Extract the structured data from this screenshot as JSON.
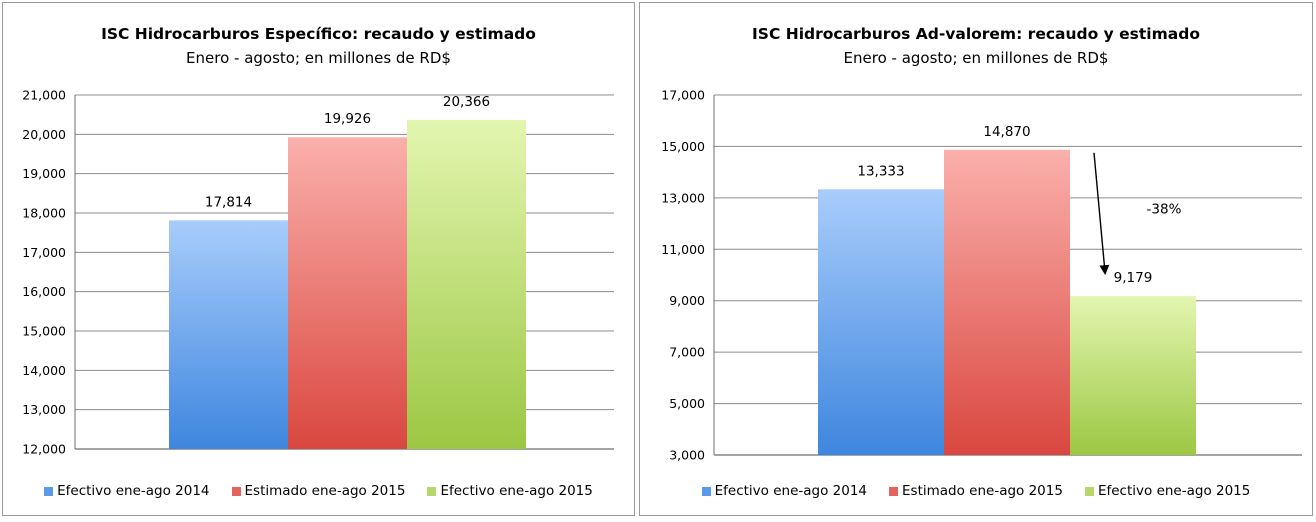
{
  "colors": {
    "series_1": "#5b9ae8",
    "series_2": "#e5635f",
    "series_3": "#b5d86a"
  },
  "chart_data": [
    {
      "type": "bar",
      "title": "ISC Hidrocarburos Específico: recaudo y estimado",
      "subtitle": "Enero - agosto; en millones de RD$",
      "categories": [
        ""
      ],
      "series": [
        {
          "name": "Efectivo ene-ago 2014",
          "values": [
            17814
          ],
          "label": "17,814"
        },
        {
          "name": "Estimado ene-ago 2015",
          "values": [
            19926
          ],
          "label": "19,926"
        },
        {
          "name": "Efectivo ene-ago 2015",
          "values": [
            20366
          ],
          "label": "20,366"
        }
      ],
      "ylim": [
        12000,
        21000
      ],
      "yticks": [
        {
          "value": 12000,
          "label": "12,000"
        },
        {
          "value": 13000,
          "label": "13,000"
        },
        {
          "value": 14000,
          "label": "14,000"
        },
        {
          "value": 15000,
          "label": "15,000"
        },
        {
          "value": 16000,
          "label": "16,000"
        },
        {
          "value": 17000,
          "label": "17,000"
        },
        {
          "value": 18000,
          "label": "18,000"
        },
        {
          "value": 19000,
          "label": "19,000"
        },
        {
          "value": 20000,
          "label": "20,000"
        },
        {
          "value": 21000,
          "label": "21,000"
        }
      ],
      "grid": true,
      "legend": "bottom",
      "xlabel": "",
      "ylabel": ""
    },
    {
      "type": "bar",
      "title": "ISC Hidrocarburos Ad-valorem: recaudo y estimado",
      "subtitle": "Enero - agosto; en millones de RD$",
      "categories": [
        ""
      ],
      "series": [
        {
          "name": "Efectivo ene-ago 2014",
          "values": [
            13333
          ],
          "label": "13,333"
        },
        {
          "name": "Estimado ene-ago 2015",
          "values": [
            14870
          ],
          "label": "14,870"
        },
        {
          "name": "Efectivo ene-ago 2015",
          "values": [
            9179
          ],
          "label": "9,179"
        }
      ],
      "ylim": [
        3000,
        17000
      ],
      "yticks": [
        {
          "value": 3000,
          "label": "3,000"
        },
        {
          "value": 5000,
          "label": "5,000"
        },
        {
          "value": 7000,
          "label": "7,000"
        },
        {
          "value": 9000,
          "label": "9,000"
        },
        {
          "value": 11000,
          "label": "11,000"
        },
        {
          "value": 13000,
          "label": "13,000"
        },
        {
          "value": 15000,
          "label": "15,000"
        },
        {
          "value": 17000,
          "label": "17,000"
        }
      ],
      "grid": true,
      "legend": "bottom",
      "xlabel": "",
      "ylabel": "",
      "annotation": {
        "text": "-38%",
        "from_series": 1,
        "to_series": 2
      }
    }
  ]
}
